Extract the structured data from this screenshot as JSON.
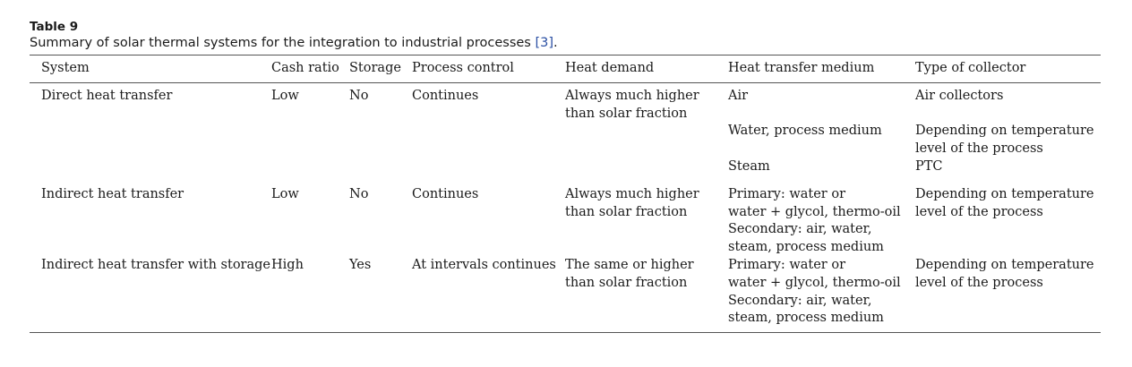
{
  "table": {
    "label": "Table 9",
    "caption_text": "Summary of solar thermal systems for the integration to industrial processes ",
    "caption_ref": "[3]",
    "caption_end": ".",
    "headers": [
      "System",
      "Cash ratio",
      "Storage",
      "Process control",
      "Heat demand",
      "Heat transfer medium",
      "Type of collector"
    ],
    "rows": [
      {
        "system": "Direct heat transfer",
        "cash_ratio": "Low",
        "storage": "No",
        "process_control": "Continues",
        "heat_demand": [
          "Always much higher",
          "than solar fraction"
        ],
        "heat_medium": [
          "Air"
        ],
        "collector": [
          "Air collectors"
        ]
      },
      {
        "system": "",
        "cash_ratio": "",
        "storage": "",
        "process_control": "",
        "heat_demand": [],
        "heat_medium": [
          "Water, process medium"
        ],
        "collector": [
          "Depending on temperature",
          "level of the process"
        ]
      },
      {
        "system": "",
        "cash_ratio": "",
        "storage": "",
        "process_control": "",
        "heat_demand": [],
        "heat_medium": [
          "Steam"
        ],
        "collector": [
          "PTC"
        ]
      },
      {
        "system": "Indirect heat transfer",
        "cash_ratio": "Low",
        "storage": "No",
        "process_control": "Continues",
        "heat_demand": [
          "Always much higher",
          "than solar fraction"
        ],
        "heat_medium": [
          "Primary: water or",
          "water + glycol, thermo-oil",
          "Secondary: air, water,",
          "steam, process medium"
        ],
        "collector": [
          "Depending on temperature",
          "level of the process"
        ]
      },
      {
        "system": "Indirect heat transfer with storage",
        "cash_ratio": "High",
        "storage": "Yes",
        "process_control": "At intervals continues",
        "heat_demand": [
          "The same or higher",
          "than solar fraction"
        ],
        "heat_medium": [
          "Primary: water or",
          "water + glycol, thermo-oil",
          "Secondary: air, water,",
          "steam, process medium"
        ],
        "collector": [
          "Depending on temperature",
          "level of the process"
        ]
      }
    ]
  }
}
